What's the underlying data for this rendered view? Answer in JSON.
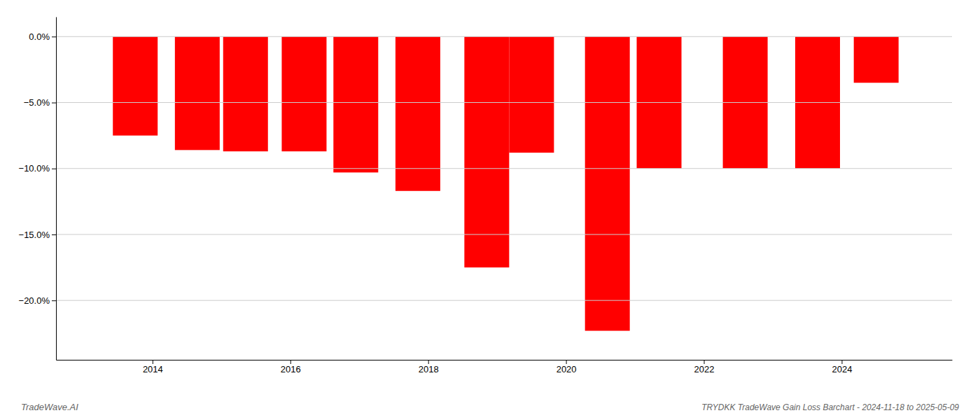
{
  "chart_data": {
    "type": "bar",
    "title": "TRYDKK TradeWave Gain Loss Barchart - 2024-11-18 to 2025-05-09",
    "annotations": [
      "TradeWave.AI"
    ],
    "x": [
      2013.75,
      2014.65,
      2015.35,
      2016.2,
      2016.95,
      2017.85,
      2018.85,
      2019.5,
      2020.6,
      2021.35,
      2022.6,
      2023.65,
      2024.5
    ],
    "values": [
      -7.5,
      -8.6,
      -8.7,
      -8.7,
      -10.3,
      -11.7,
      -17.5,
      -8.8,
      -22.3,
      -10.0,
      -10.0,
      -10.0,
      -3.5
    ],
    "color": "#ff0000",
    "xlim": [
      2012.6,
      2025.6
    ],
    "ylim": [
      -24.5,
      1.5
    ],
    "xticks": [
      2014,
      2016,
      2018,
      2020,
      2022,
      2024
    ],
    "yticks": [
      {
        "value": 0.0,
        "label": "0.0%"
      },
      {
        "value": -5.0,
        "label": "−5.0%"
      },
      {
        "value": -10.0,
        "label": "−10.0%"
      },
      {
        "value": -15.0,
        "label": "−15.0%"
      },
      {
        "value": -20.0,
        "label": "−20.0%"
      }
    ],
    "grid": true
  }
}
